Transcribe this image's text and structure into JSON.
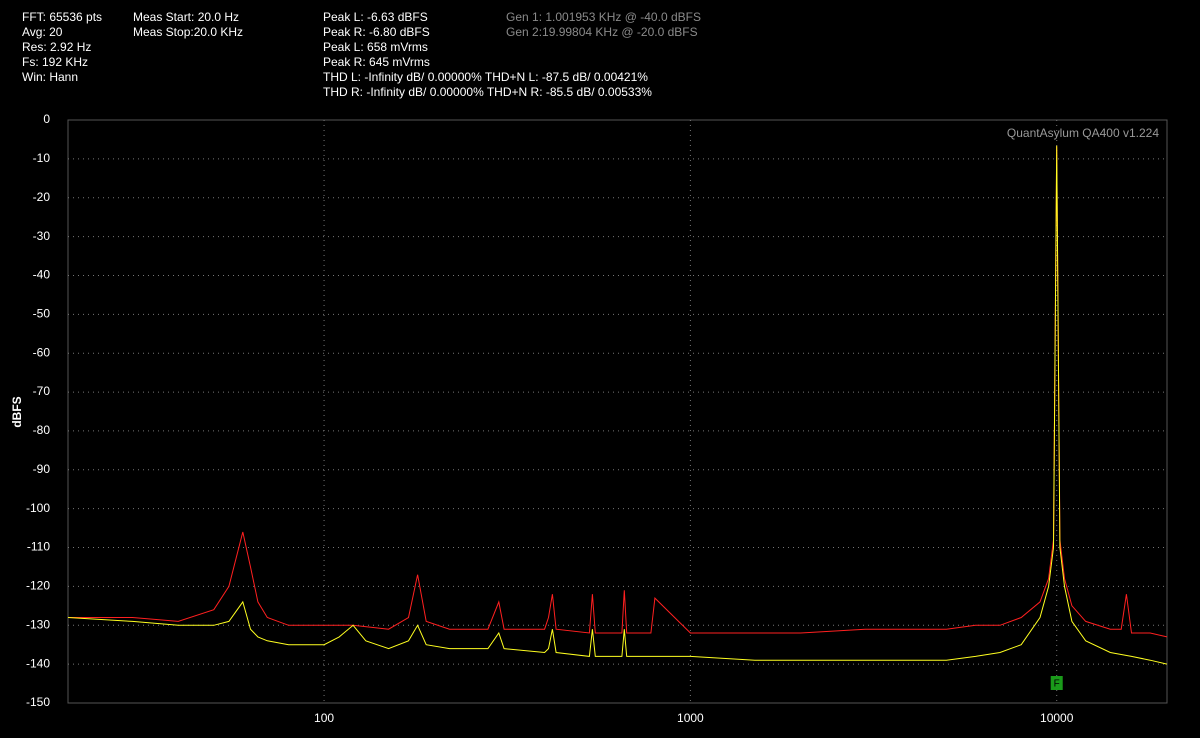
{
  "chart_data": {
    "type": "line",
    "ylabel": "dBFS",
    "xscale": "log",
    "xlim": [
      20,
      20000
    ],
    "ylim": [
      -150,
      0
    ],
    "xticks": [
      100,
      1000,
      10000
    ],
    "yticks": [
      0,
      -10,
      -20,
      -30,
      -40,
      -50,
      -60,
      -70,
      -80,
      -90,
      -100,
      -110,
      -120,
      -130,
      -140,
      -150
    ],
    "grid": true,
    "watermark": "QuantAsylum QA400 v1.224",
    "marker_label": "F",
    "info": [
      [
        "FFT: 65536 pts",
        "Avg: 20",
        "Res: 2.92 Hz",
        "Fs: 192 KHz",
        "Win: Hann"
      ],
      [
        "Meas Start: 20.0 Hz",
        "Meas Stop:20.0 KHz"
      ],
      [
        "Peak L: -6.63 dBFS",
        "Peak R: -6.80 dBFS",
        "Peak L: 658 mVrms",
        "Peak R: 645 mVrms",
        "THD L: -Infinity dB/ 0.00000% THD+N L: -87.5 dB/ 0.00421%",
        "THD R: -Infinity dB/ 0.00000% THD+N R: -85.5 dB/ 0.00533%"
      ],
      [
        "Gen 1: 1.001953 KHz @ -40.0  dBFS",
        "Gen 2:19.99804 KHz @ -20.0  dBFS"
      ]
    ],
    "series": [
      {
        "color": "#ff2020",
        "x": [
          20,
          30,
          40,
          50,
          55,
          60,
          63,
          66,
          70,
          80,
          100,
          120,
          150,
          170,
          180,
          190,
          220,
          280,
          300,
          310,
          400,
          410,
          420,
          430,
          530,
          540,
          550,
          650,
          660,
          670,
          780,
          800,
          1000,
          1500,
          2000,
          3000,
          4000,
          5000,
          6000,
          7000,
          8000,
          9000,
          9500,
          9800,
          10000,
          10200,
          10500,
          11000,
          12000,
          14000,
          15000,
          15500,
          16000,
          18000,
          20000
        ],
        "values": [
          -128,
          -128,
          -129,
          -126,
          -120,
          -106,
          -115,
          -124,
          -128,
          -130,
          -130,
          -130,
          -131,
          -128,
          -117,
          -129,
          -131,
          -131,
          -124,
          -131,
          -131,
          -128,
          -122,
          -131,
          -132,
          -122,
          -132,
          -132,
          -121,
          -132,
          -132,
          -123,
          -132,
          -132,
          -132,
          -131,
          -131,
          -131,
          -130,
          -130,
          -128,
          -124,
          -118,
          -108,
          -6.8,
          -108,
          -118,
          -125,
          -129,
          -131,
          -131,
          -122,
          -132,
          -132,
          -133
        ]
      },
      {
        "color": "#ffff20",
        "x": [
          20,
          30,
          40,
          50,
          55,
          60,
          63,
          66,
          70,
          80,
          100,
          110,
          120,
          130,
          150,
          170,
          180,
          190,
          220,
          280,
          300,
          310,
          400,
          410,
          420,
          430,
          530,
          540,
          550,
          650,
          660,
          670,
          800,
          1000,
          1500,
          2000,
          3000,
          4000,
          5000,
          6000,
          7000,
          8000,
          9000,
          9500,
          9800,
          10000,
          10200,
          10500,
          11000,
          12000,
          14000,
          16000,
          18000,
          20000
        ],
        "values": [
          -128,
          -129,
          -130,
          -130,
          -129,
          -124,
          -131,
          -133,
          -134,
          -135,
          -135,
          -133,
          -130,
          -134,
          -136,
          -134,
          -130,
          -135,
          -136,
          -136,
          -132,
          -136,
          -137,
          -136,
          -131,
          -137,
          -138,
          -131,
          -138,
          -138,
          -131,
          -138,
          -138,
          -138,
          -139,
          -139,
          -139,
          -139,
          -139,
          -138,
          -137,
          -135,
          -128,
          -120,
          -110,
          -6.6,
          -110,
          -120,
          -129,
          -134,
          -137,
          -138,
          -139,
          -140
        ]
      }
    ]
  }
}
